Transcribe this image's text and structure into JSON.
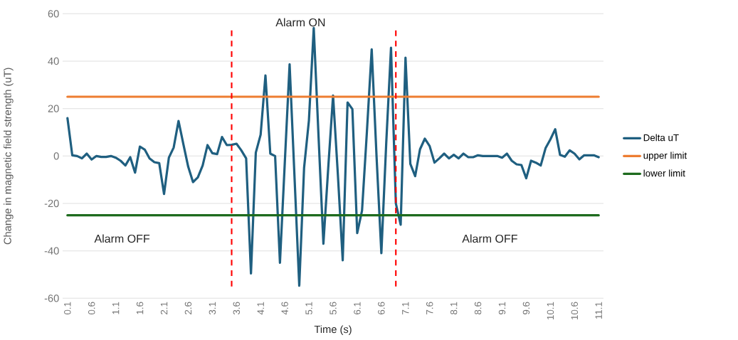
{
  "chart_data": {
    "type": "line",
    "xlabel": "Time (s)",
    "ylabel": "Change in magnetic field strength (uT)",
    "x": [
      0.1,
      0.2,
      0.3,
      0.4,
      0.5,
      0.6,
      0.7,
      0.8,
      0.9,
      1.0,
      1.1,
      1.2,
      1.3,
      1.4,
      1.5,
      1.6,
      1.7,
      1.8,
      1.9,
      2.0,
      2.1,
      2.2,
      2.3,
      2.4,
      2.5,
      2.6,
      2.7,
      2.8,
      2.9,
      3.0,
      3.1,
      3.2,
      3.3,
      3.4,
      3.5,
      3.6,
      3.7,
      3.8,
      3.9,
      4.0,
      4.1,
      4.2,
      4.3,
      4.4,
      4.5,
      4.6,
      4.7,
      4.8,
      4.9,
      5.0,
      5.1,
      5.2,
      5.3,
      5.4,
      5.5,
      5.6,
      5.7,
      5.8,
      5.9,
      6.0,
      6.1,
      6.2,
      6.3,
      6.4,
      6.5,
      6.6,
      6.7,
      6.8,
      6.9,
      7.0,
      7.1,
      7.2,
      7.3,
      7.4,
      7.5,
      7.6,
      7.7,
      7.8,
      7.9,
      8.0,
      8.1,
      8.2,
      8.3,
      8.4,
      8.5,
      8.6,
      8.7,
      8.8,
      8.9,
      9.0,
      9.1,
      9.2,
      9.3,
      9.4,
      9.5,
      9.6,
      9.7,
      9.8,
      9.9,
      10.0,
      10.1,
      10.2,
      10.3,
      10.4,
      10.5,
      10.6,
      10.7,
      10.8,
      10.9,
      11.0,
      11.1
    ],
    "series": [
      {
        "name": "Delta uT",
        "color": "#1f5f80",
        "values": [
          16,
          0.3,
          0,
          -1,
          1,
          -1.5,
          0,
          -0.4,
          -0.4,
          0,
          -0.7,
          -2,
          -4,
          -0.5,
          -7,
          4,
          2.7,
          -1,
          -2.6,
          -3,
          -16,
          -0.7,
          3.6,
          14.8,
          5,
          -4.5,
          -11,
          -9,
          -4,
          4.6,
          1.2,
          0.8,
          8,
          4.6,
          4.7,
          5.2,
          2.4,
          -1,
          -49.5,
          1.4,
          9,
          34,
          1,
          0,
          -45,
          -3,
          38.7,
          -8,
          -54.7,
          -5,
          15,
          54,
          8,
          -37,
          -5,
          25.5,
          -8,
          -44,
          22.6,
          19.8,
          -32.5,
          -23,
          10,
          45,
          0,
          -41,
          5,
          45.7,
          -20,
          -29,
          41.5,
          -3.3,
          -8.5,
          2.8,
          7.3,
          4.2,
          -2.8,
          -1,
          1,
          -1,
          0.5,
          -1,
          1,
          -0.5,
          -0.5,
          0.3,
          0,
          0,
          0,
          0,
          -0.7,
          1,
          -2,
          -3.5,
          -3.8,
          -9.4,
          -2,
          -2.8,
          -4,
          3.3,
          7,
          11.3,
          0.5,
          -0.3,
          2.4,
          1,
          -1.4,
          0.3,
          0.3,
          0.3,
          -0.5
        ]
      },
      {
        "name": "upper limit",
        "color": "#ed7d31",
        "values": [
          25,
          25,
          25,
          25,
          25,
          25,
          25,
          25,
          25,
          25,
          25,
          25,
          25,
          25,
          25,
          25,
          25,
          25,
          25,
          25,
          25,
          25,
          25,
          25,
          25,
          25,
          25,
          25,
          25,
          25,
          25,
          25,
          25,
          25,
          25,
          25,
          25,
          25,
          25,
          25,
          25,
          25,
          25,
          25,
          25,
          25,
          25,
          25,
          25,
          25,
          25,
          25,
          25,
          25,
          25,
          25,
          25,
          25,
          25,
          25,
          25,
          25,
          25,
          25,
          25,
          25,
          25,
          25,
          25,
          25,
          25,
          25,
          25,
          25,
          25,
          25,
          25,
          25,
          25,
          25,
          25,
          25,
          25,
          25,
          25,
          25,
          25,
          25,
          25,
          25,
          25,
          25,
          25,
          25,
          25,
          25,
          25,
          25,
          25,
          25,
          25,
          25,
          25,
          25,
          25,
          25,
          25,
          25,
          25,
          25,
          25
        ]
      },
      {
        "name": "lower limit",
        "color": "#1e6b1e",
        "values": [
          -25,
          -25,
          -25,
          -25,
          -25,
          -25,
          -25,
          -25,
          -25,
          -25,
          -25,
          -25,
          -25,
          -25,
          -25,
          -25,
          -25,
          -25,
          -25,
          -25,
          -25,
          -25,
          -25,
          -25,
          -25,
          -25,
          -25,
          -25,
          -25,
          -25,
          -25,
          -25,
          -25,
          -25,
          -25,
          -25,
          -25,
          -25,
          -25,
          -25,
          -25,
          -25,
          -25,
          -25,
          -25,
          -25,
          -25,
          -25,
          -25,
          -25,
          -25,
          -25,
          -25,
          -25,
          -25,
          -25,
          -25,
          -25,
          -25,
          -25,
          -25,
          -25,
          -25,
          -25,
          -25,
          -25,
          -25,
          -25,
          -25,
          -25,
          -25,
          -25,
          -25,
          -25,
          -25,
          -25,
          -25,
          -25,
          -25,
          -25,
          -25,
          -25,
          -25,
          -25,
          -25,
          -25,
          -25,
          -25,
          -25,
          -25,
          -25,
          -25,
          -25,
          -25,
          -25,
          -25,
          -25,
          -25,
          -25,
          -25,
          -25,
          -25,
          -25,
          -25,
          -25,
          -25,
          -25,
          -25,
          -25,
          -25,
          -25
        ]
      }
    ],
    "xlim": [
      0,
      11.2
    ],
    "ylim": [
      -60,
      60
    ],
    "xticks": [
      0.1,
      0.6,
      1.1,
      1.6,
      2.1,
      2.6,
      3.1,
      3.6,
      4.1,
      4.6,
      5.1,
      5.6,
      6.1,
      6.6,
      7.1,
      7.6,
      8.1,
      8.6,
      9.1,
      9.6,
      10.1,
      10.6,
      11.1
    ],
    "yticks": [
      -60,
      -40,
      -20,
      0,
      20,
      40,
      60
    ],
    "ref_lines": [
      {
        "axis": "x",
        "value": 3.5,
        "color": "#ff0000",
        "line_style": "dashed"
      },
      {
        "axis": "x",
        "value": 6.9,
        "color": "#ff0000",
        "line_style": "dashed"
      }
    ],
    "annotations": [
      "Alarm ON",
      "Alarm OFF",
      "Alarm OFF"
    ],
    "grid": "y",
    "legend": "right",
    "marker": "none",
    "line_style": "solid"
  }
}
